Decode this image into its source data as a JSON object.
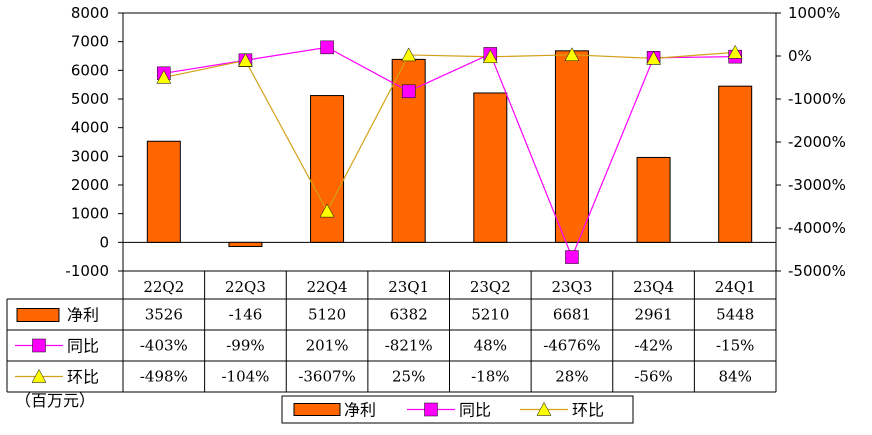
{
  "chart_data": {
    "type": "bar",
    "categories": [
      "22Q2",
      "22Q3",
      "22Q4",
      "23Q1",
      "23Q2",
      "23Q3",
      "23Q4",
      "24Q1"
    ],
    "series": [
      {
        "name": "净利",
        "type": "bar",
        "axis": "left",
        "color": "#FF6600",
        "values": [
          3526,
          -146,
          5120,
          6382,
          5210,
          6681,
          2961,
          5448
        ],
        "labels": [
          "3526",
          "-146",
          "5120",
          "6382",
          "5210",
          "6681",
          "2961",
          "5448"
        ]
      },
      {
        "name": "同比",
        "type": "line",
        "axis": "right",
        "color": "#FF00FF",
        "marker": "square",
        "values": [
          -403,
          -99,
          201,
          -821,
          48,
          -4676,
          -42,
          -15
        ],
        "labels": [
          "-403%",
          "-99%",
          "201%",
          "-821%",
          "48%",
          "-4676%",
          "-42%",
          "-15%"
        ]
      },
      {
        "name": "环比",
        "type": "line",
        "axis": "right",
        "color": "#FFFF00",
        "line_color": "#D4A017",
        "marker": "triangle",
        "values": [
          -498,
          -104,
          -3607,
          25,
          -18,
          28,
          -56,
          84
        ],
        "labels": [
          "-498%",
          "-104%",
          "-3607%",
          "25%",
          "-18%",
          "28%",
          "-56%",
          "84%"
        ]
      }
    ],
    "y_left": {
      "lim": [
        -1000,
        8000
      ],
      "ticks": [
        "8000",
        "7000",
        "6000",
        "5000",
        "4000",
        "3000",
        "2000",
        "1000",
        "0",
        "-1000"
      ]
    },
    "y_right": {
      "lim": [
        -5000,
        1000
      ],
      "ticks": [
        "1000%",
        "0%",
        "-1000%",
        "-2000%",
        "-3000%",
        "-4000%",
        "-5000%"
      ]
    },
    "unit_label": "（百万元）",
    "legend": [
      "净利",
      "同比",
      "环比"
    ],
    "legend_position": "bottom",
    "grid": false
  }
}
